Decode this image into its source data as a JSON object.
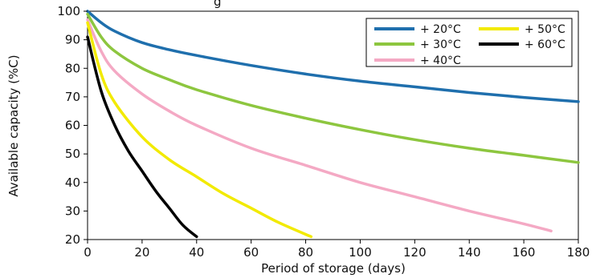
{
  "chart_data": {
    "type": "line",
    "title": "",
    "title_partial_visible": "g",
    "xlabel": "Period of storage (days)",
    "ylabel": "Available capacity (%C)",
    "xlim": [
      0,
      180
    ],
    "ylim": [
      20,
      100
    ],
    "x_ticks": [
      0,
      20,
      40,
      60,
      80,
      100,
      120,
      140,
      160,
      180
    ],
    "y_ticks": [
      20,
      30,
      40,
      50,
      60,
      70,
      80,
      90,
      100
    ],
    "grid": false,
    "legend_position": "top-right",
    "series": [
      {
        "name": "+ 20°C",
        "color": "#1f6fad",
        "x": [
          0,
          5,
          10,
          20,
          30,
          40,
          60,
          80,
          100,
          120,
          140,
          160,
          180
        ],
        "y": [
          100,
          96,
          93,
          89,
          86.5,
          84.5,
          81,
          78,
          75.5,
          73.5,
          71.5,
          69.8,
          68.3
        ]
      },
      {
        "name": "+ 30°C",
        "color": "#8dc63f",
        "x": [
          0,
          5,
          10,
          20,
          30,
          40,
          60,
          80,
          100,
          120,
          140,
          160,
          180
        ],
        "y": [
          99,
          91,
          86,
          80,
          76,
          72.5,
          67,
          62.5,
          58.5,
          55,
          52,
          49.5,
          47
        ]
      },
      {
        "name": "+ 40°C",
        "color": "#f4a9c4",
        "x": [
          0,
          5,
          10,
          20,
          30,
          40,
          60,
          80,
          100,
          120,
          140,
          160,
          170
        ],
        "y": [
          97,
          86,
          79,
          71,
          65,
          60,
          52,
          46,
          40,
          35,
          30,
          25.5,
          23
        ]
      },
      {
        "name": "+ 50°C",
        "color": "#f2ea00",
        "x": [
          0,
          5,
          10,
          20,
          30,
          40,
          50,
          60,
          70,
          82
        ],
        "y": [
          96,
          78,
          68,
          56,
          48,
          42,
          36,
          31,
          26,
          21
        ]
      },
      {
        "name": "+ 60°C",
        "color": "#000000",
        "x": [
          0,
          5,
          10,
          15,
          20,
          25,
          30,
          35,
          40
        ],
        "y": [
          91,
          72,
          60,
          51,
          44,
          37,
          31,
          25,
          21
        ]
      }
    ]
  }
}
